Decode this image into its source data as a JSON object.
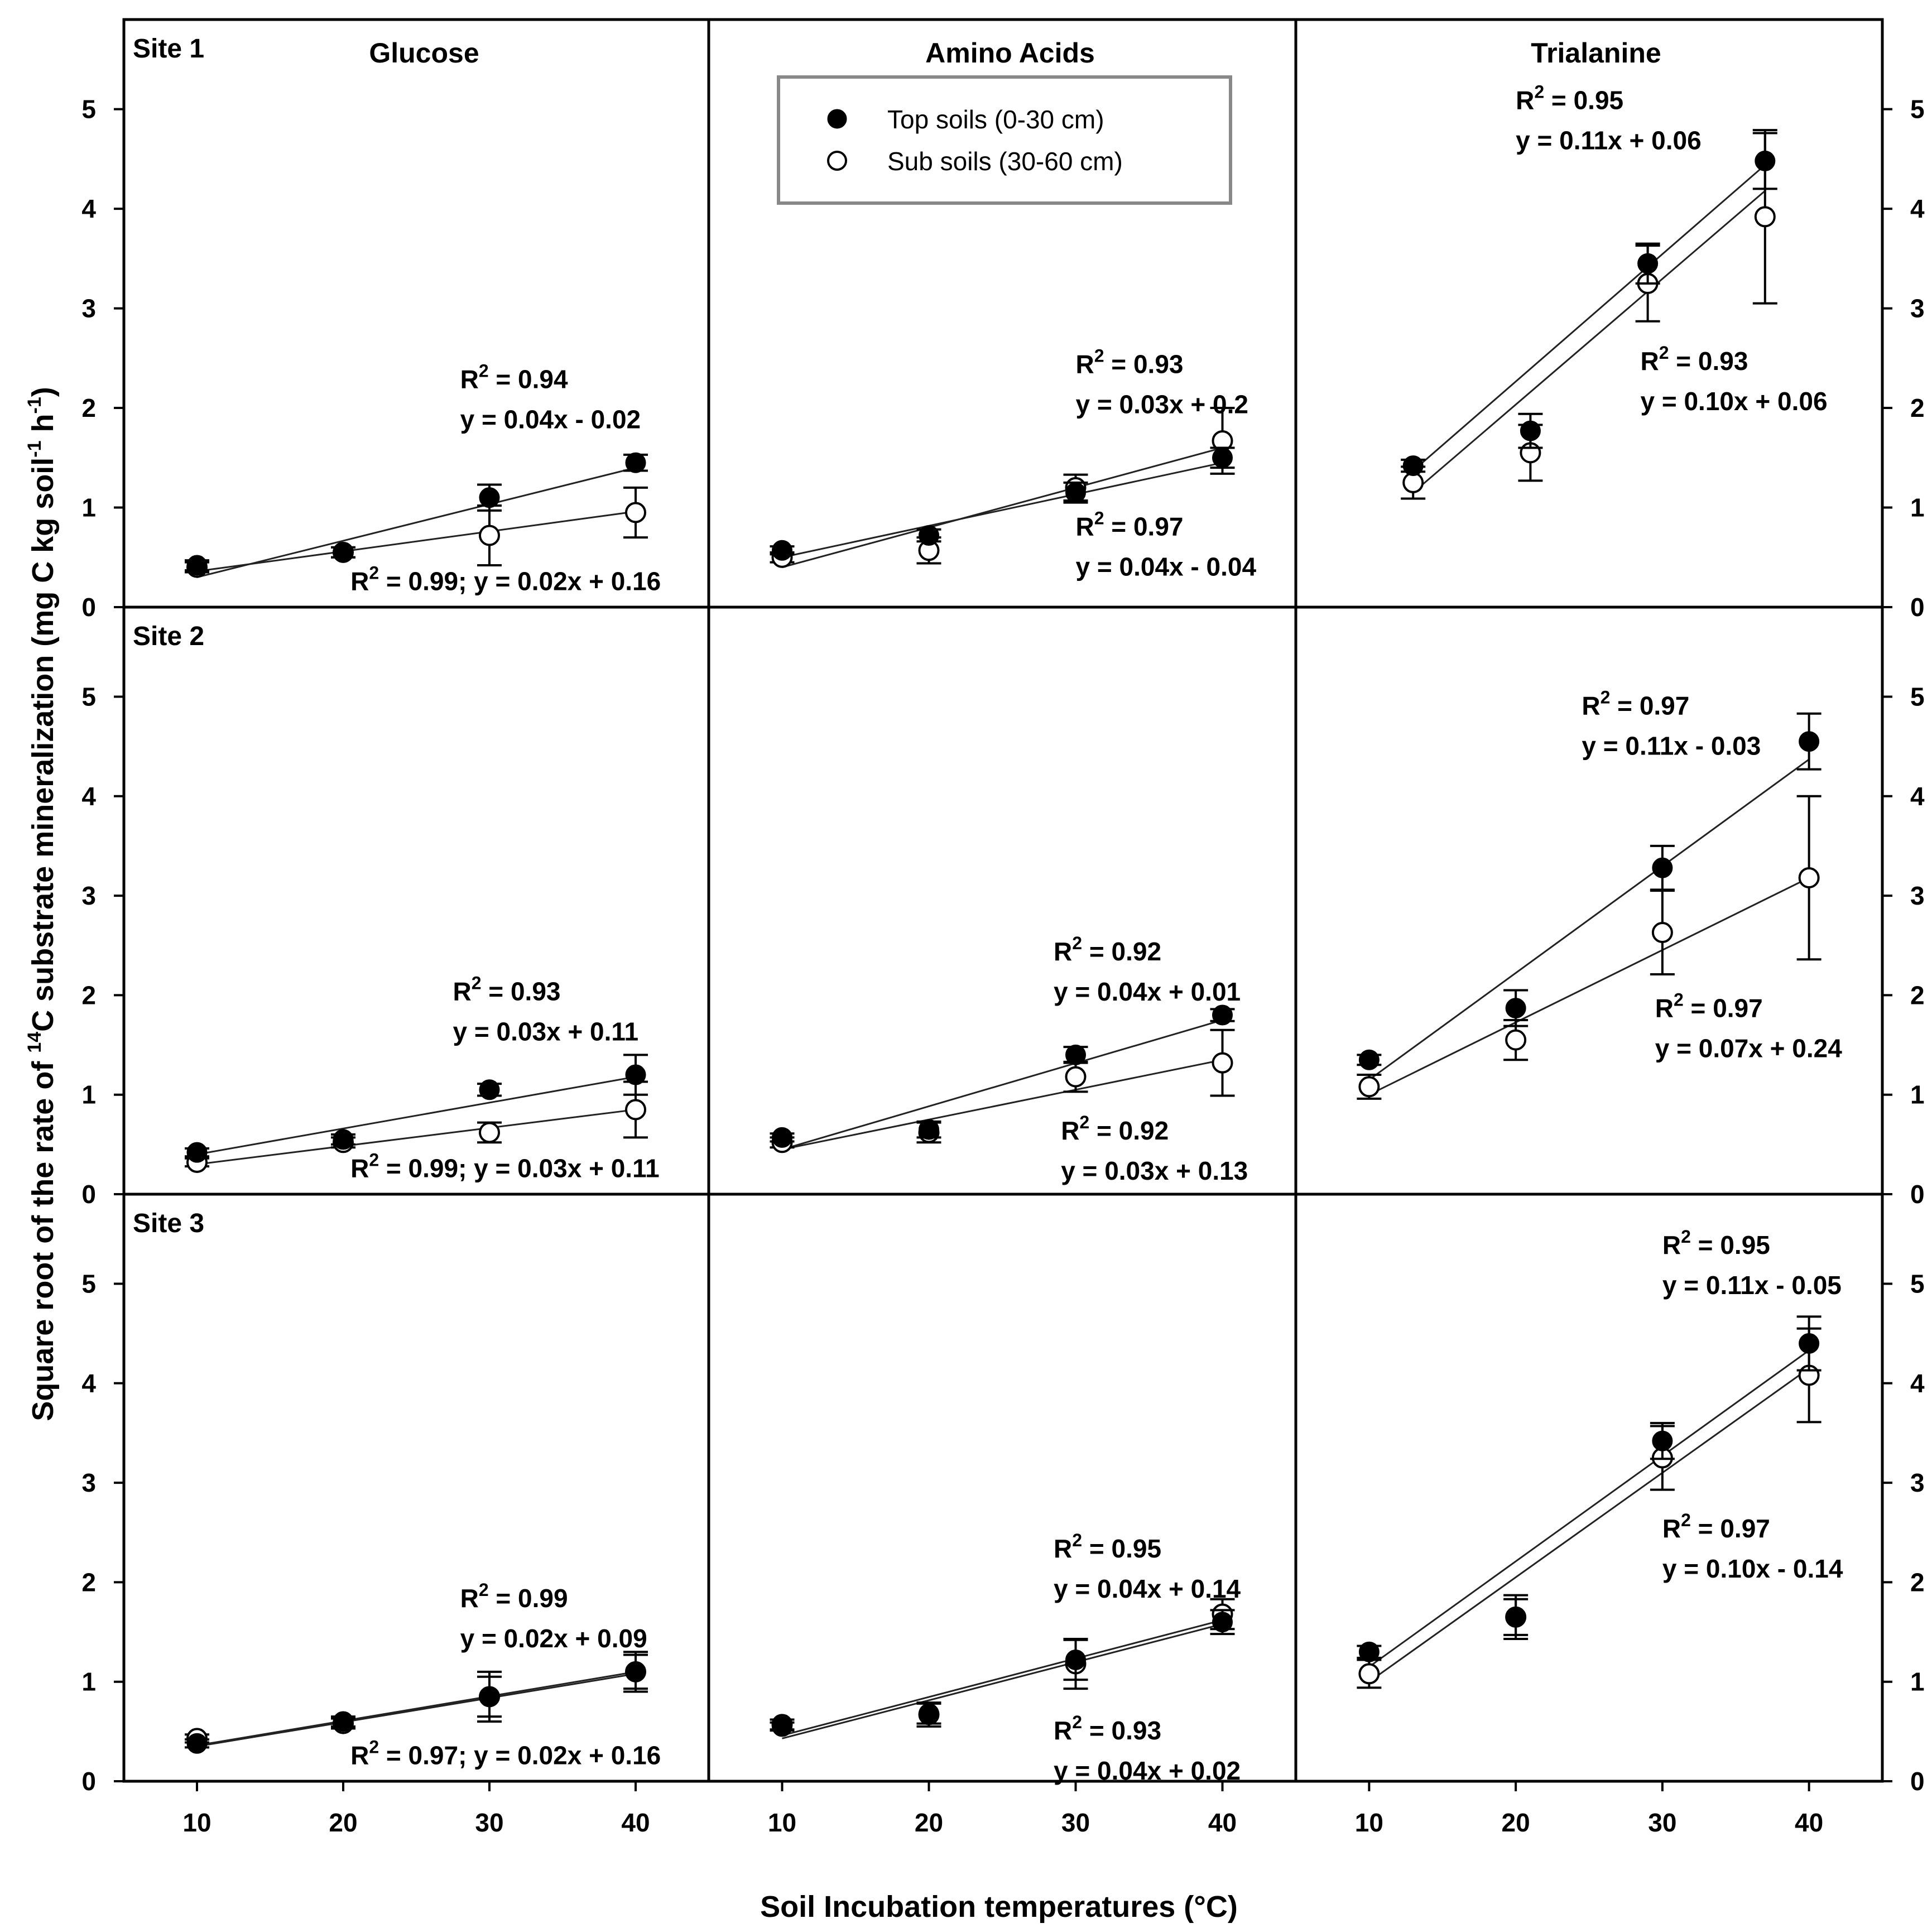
{
  "chart_data": {
    "type": "scatter",
    "xlabel": "Soil Incubation temperatures (°C)",
    "ylabel_parts": [
      "Square root of the rate of ",
      "14",
      "C substrate mineralization (mg C kg soil",
      "-1",
      " h",
      "-1",
      ")"
    ],
    "x_ticks": [
      10,
      20,
      30,
      40
    ],
    "y_ticks": [
      0,
      1,
      2,
      3,
      4,
      5
    ],
    "xlim": [
      5,
      45
    ],
    "ylim": [
      0,
      5.9
    ],
    "legend": {
      "position": "top-center",
      "entries": [
        {
          "name": "Top soils (0-30 cm)",
          "marker": "filled-circle"
        },
        {
          "name": "Sub soils (30-60 cm)",
          "marker": "open-circle"
        }
      ]
    },
    "column_titles": [
      "Glucose",
      "Amino Acids",
      "Trialanine"
    ],
    "row_labels": [
      "Site 1",
      "Site 2",
      "Site 3"
    ],
    "panels": [
      {
        "row": 0,
        "col": 0,
        "top": {
          "x": [
            10,
            20,
            30,
            40
          ],
          "y": [
            0.42,
            0.55,
            1.1,
            1.45
          ],
          "err": [
            0.05,
            0.05,
            0.13,
            0.08
          ],
          "fit": [
            0.3,
            1.4
          ]
        },
        "sub": {
          "x": [
            10,
            20,
            30,
            40
          ],
          "y": [
            0.4,
            0.55,
            0.72,
            0.95
          ],
          "err": [
            0.05,
            0.05,
            0.3,
            0.25
          ],
          "fit": [
            0.36,
            0.96
          ]
        },
        "equations": [
          {
            "r2": "0.94",
            "eq": "y = 0.04x - 0.02",
            "anchor": [
              28,
              2.2
            ]
          },
          {
            "text": "R",
            "r2": "0.99",
            "eq": "y = 0.02x + 0.16",
            "inline": true,
            "anchor": [
              20.5,
              0.17
            ]
          }
        ]
      },
      {
        "row": 0,
        "col": 1,
        "top": {
          "x": [
            10,
            20,
            30,
            40
          ],
          "y": [
            0.57,
            0.72,
            1.15,
            1.5
          ],
          "err": [
            0.04,
            0.06,
            0.1,
            0.1
          ],
          "fit": [
            0.5,
            1.45
          ]
        },
        "sub": {
          "x": [
            10,
            20,
            30,
            40
          ],
          "y": [
            0.5,
            0.57,
            1.2,
            1.67
          ],
          "err": [
            0.05,
            0.13,
            0.13,
            0.33
          ],
          "fit": [
            0.4,
            1.6
          ]
        },
        "equations": [
          {
            "r2": "0.93",
            "eq": "y = 0.03x + 0.2",
            "anchor": [
              30,
              2.35
            ]
          },
          {
            "r2": "0.97",
            "eq": "y = 0.04x - 0.04",
            "anchor": [
              30,
              0.72
            ]
          }
        ]
      },
      {
        "row": 0,
        "col": 2,
        "top": {
          "x": [
            13,
            21,
            29,
            37
          ],
          "y": [
            1.42,
            1.77,
            3.45,
            4.48
          ],
          "err": [
            0.06,
            0.17,
            0.2,
            0.28
          ],
          "fit": [
            1.37,
            4.44
          ]
        },
        "sub": {
          "x": [
            13,
            21,
            29,
            37
          ],
          "y": [
            1.25,
            1.55,
            3.25,
            3.92
          ],
          "err": [
            0.16,
            0.28,
            0.38,
            0.87
          ],
          "fit": [
            1.15,
            4.18
          ]
        },
        "equations": [
          {
            "r2": "0.95",
            "eq": "y = 0.11x + 0.06",
            "anchor": [
              20,
              5.0
            ]
          },
          {
            "r2": "0.93",
            "eq": "y = 0.10x + 0.06",
            "anchor": [
              28.5,
              2.38
            ]
          }
        ]
      },
      {
        "row": 1,
        "col": 0,
        "top": {
          "x": [
            10,
            20,
            30,
            40
          ],
          "y": [
            0.42,
            0.55,
            1.05,
            1.2
          ],
          "err": [
            0.04,
            0.05,
            0.06,
            0.2
          ],
          "fit": [
            0.4,
            1.18
          ]
        },
        "sub": {
          "x": [
            10,
            20,
            30,
            40
          ],
          "y": [
            0.32,
            0.52,
            0.62,
            0.85
          ],
          "err": [
            0.04,
            0.05,
            0.1,
            0.28
          ],
          "fit": [
            0.3,
            0.85
          ]
        },
        "equations": [
          {
            "r2": "0.93",
            "eq": "y = 0.03x + 0.11",
            "anchor": [
              27.5,
              1.95
            ]
          },
          {
            "r2": "0.99",
            "eq": "y = 0.03x + 0.11",
            "inline": true,
            "anchor": [
              20.5,
              0.17
            ]
          }
        ]
      },
      {
        "row": 1,
        "col": 1,
        "top": {
          "x": [
            10,
            20,
            30,
            40
          ],
          "y": [
            0.57,
            0.65,
            1.4,
            1.8
          ],
          "err": [
            0.04,
            0.08,
            0.08,
            0.06
          ],
          "fit": [
            0.45,
            1.75
          ]
        },
        "sub": {
          "x": [
            10,
            20,
            30,
            40
          ],
          "y": [
            0.52,
            0.62,
            1.18,
            1.32
          ],
          "err": [
            0.05,
            0.1,
            0.15,
            0.33
          ],
          "fit": [
            0.45,
            1.35
          ]
        },
        "equations": [
          {
            "r2": "0.92",
            "eq": "y = 0.04x + 0.01",
            "anchor": [
              28.5,
              2.35
            ]
          },
          {
            "r2": "0.92",
            "eq": "y = 0.03x + 0.13",
            "anchor": [
              29,
              0.55
            ]
          }
        ]
      },
      {
        "row": 1,
        "col": 2,
        "top": {
          "x": [
            10,
            20,
            30,
            40
          ],
          "y": [
            1.35,
            1.87,
            3.28,
            4.55
          ],
          "err": [
            0.05,
            0.18,
            0.22,
            0.28
          ],
          "fit": [
            1.15,
            4.37
          ]
        },
        "sub": {
          "x": [
            10,
            20,
            30,
            40
          ],
          "y": [
            1.08,
            1.55,
            2.63,
            3.18
          ],
          "err": [
            0.12,
            0.2,
            0.42,
            0.82
          ],
          "fit": [
            1.0,
            3.18
          ]
        },
        "equations": [
          {
            "r2": "0.97",
            "eq": "y = 0.11x - 0.03",
            "anchor": [
              24.5,
              4.82
            ]
          },
          {
            "r2": "0.97",
            "eq": "y = 0.07x + 0.24",
            "anchor": [
              29.5,
              1.78
            ]
          }
        ]
      },
      {
        "row": 2,
        "col": 0,
        "top": {
          "x": [
            10,
            20,
            30,
            40
          ],
          "y": [
            0.38,
            0.6,
            0.85,
            1.1
          ],
          "err": [
            0.04,
            0.05,
            0.2,
            0.17
          ],
          "fit": [
            0.36,
            1.1
          ]
        },
        "sub": {
          "x": [
            10,
            20,
            30,
            40
          ],
          "y": [
            0.43,
            0.58,
            0.85,
            1.1
          ],
          "err": [
            0.04,
            0.05,
            0.25,
            0.2
          ],
          "fit": [
            0.35,
            1.08
          ]
        },
        "equations": [
          {
            "r2": "0.99",
            "eq": "y = 0.02x + 0.09",
            "anchor": [
              28,
              1.75
            ]
          },
          {
            "r2": "0.97",
            "eq": "y = 0.02x + 0.16",
            "inline": true,
            "anchor": [
              20.5,
              0.17
            ]
          }
        ]
      },
      {
        "row": 2,
        "col": 1,
        "top": {
          "x": [
            10,
            20,
            30,
            40
          ],
          "y": [
            0.55,
            0.68,
            1.22,
            1.6
          ],
          "err": [
            0.04,
            0.1,
            0.2,
            0.12
          ],
          "fit": [
            0.46,
            1.62
          ]
        },
        "sub": {
          "x": [
            10,
            20,
            30,
            40
          ],
          "y": [
            0.57,
            0.67,
            1.18,
            1.68
          ],
          "err": [
            0.05,
            0.12,
            0.25,
            0.15
          ],
          "fit": [
            0.43,
            1.58
          ]
        },
        "equations": [
          {
            "r2": "0.95",
            "eq": "y = 0.04x + 0.14",
            "anchor": [
              28.5,
              2.25
            ]
          },
          {
            "r2": "0.93",
            "eq": "y = 0.04x + 0.02",
            "anchor": [
              28.5,
              0.42
            ]
          }
        ]
      },
      {
        "row": 2,
        "col": 2,
        "top": {
          "x": [
            10,
            20,
            30,
            40
          ],
          "y": [
            1.3,
            1.65,
            3.42,
            4.4
          ],
          "err": [
            0.06,
            0.22,
            0.18,
            0.27
          ],
          "fit": [
            1.15,
            4.33
          ]
        },
        "sub": {
          "x": [
            10,
            20,
            30,
            40
          ],
          "y": [
            1.08,
            1.65,
            3.25,
            4.08
          ],
          "err": [
            0.14,
            0.18,
            0.32,
            0.47
          ],
          "fit": [
            1.0,
            4.15
          ]
        },
        "equations": [
          {
            "r2": "0.95",
            "eq": "y = 0.11x - 0.05",
            "anchor": [
              30,
              5.3
            ]
          },
          {
            "r2": "0.97",
            "eq": "y = 0.10x - 0.14",
            "anchor": [
              30,
              2.45
            ]
          }
        ]
      }
    ]
  }
}
